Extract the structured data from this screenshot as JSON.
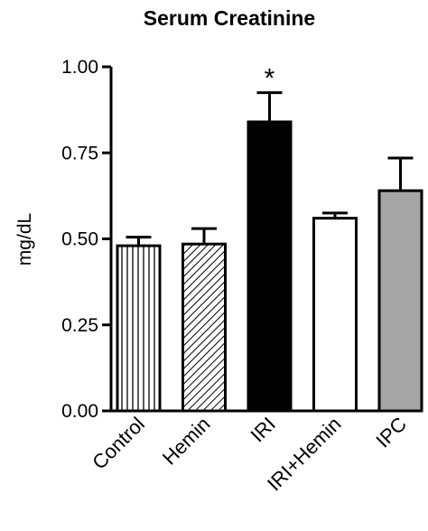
{
  "chart_data": {
    "type": "bar",
    "title": "Serum Creatinine",
    "ylabel": "mg/dL",
    "xlabel": "",
    "ylim": [
      0,
      1.0
    ],
    "yticks": [
      "0.00",
      "0.25",
      "0.50",
      "0.75",
      "1.00"
    ],
    "categories": [
      "Control",
      "Hemin",
      "IRI",
      "IRI+Hemin",
      "IPC"
    ],
    "values": [
      0.48,
      0.485,
      0.84,
      0.56,
      0.64
    ],
    "errors": [
      0.025,
      0.045,
      0.085,
      0.015,
      0.095
    ],
    "fills": [
      "vertical-stripes",
      "diagonal-hatch",
      "solid-black",
      "white",
      "solid-gray"
    ],
    "colors": {
      "axis": "#000000",
      "gray": "#a6a6a6",
      "black": "#000000",
      "white": "#ffffff"
    },
    "annotations": [
      {
        "category": "IRI",
        "text": "*"
      }
    ],
    "grid": false,
    "legend": "none"
  }
}
